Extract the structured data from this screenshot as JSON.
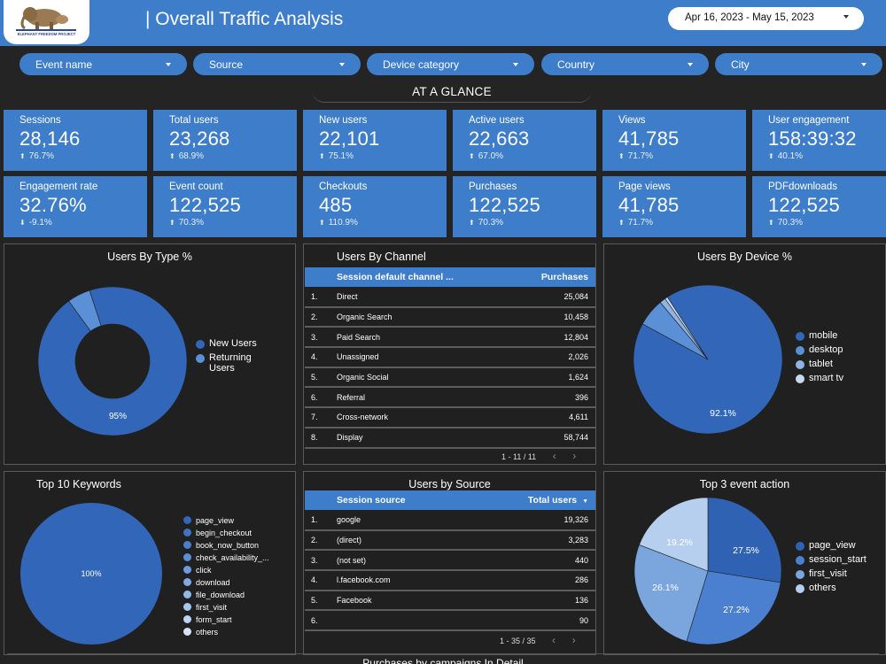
{
  "header": {
    "logo_text": "ELEPHANT FREEDOM PROJECT",
    "title": "| Overall Traffic Analysis",
    "date_range": "Apr 16, 2023 - May 15, 2023"
  },
  "filters": [
    "Event name",
    "Source",
    "Device category",
    "Country",
    "City"
  ],
  "section_title": "AT A GLANCE",
  "kpis": [
    {
      "label": "Sessions",
      "value": "28,146",
      "delta": "76.7%",
      "dir": "up"
    },
    {
      "label": "Total users",
      "value": "23,268",
      "delta": "68.9%",
      "dir": "up"
    },
    {
      "label": "New users",
      "value": "22,101",
      "delta": "75.1%",
      "dir": "up"
    },
    {
      "label": "Active users",
      "value": "22,663",
      "delta": "67.0%",
      "dir": "up"
    },
    {
      "label": "Views",
      "value": "41,785",
      "delta": "71.7%",
      "dir": "up"
    },
    {
      "label": "User engagement",
      "value": "158:39:32",
      "delta": "40.1%",
      "dir": "up"
    },
    {
      "label": "Engagement rate",
      "value": "32.76%",
      "delta": "-9.1%",
      "dir": "down"
    },
    {
      "label": "Event count",
      "value": "122,525",
      "delta": "70.3%",
      "dir": "up"
    },
    {
      "label": "Checkouts",
      "value": "485",
      "delta": "110.9%",
      "dir": "up"
    },
    {
      "label": "Purchases",
      "value": "122,525",
      "delta": "70.3%",
      "dir": "up"
    },
    {
      "label": "Page views",
      "value": "41,785",
      "delta": "71.7%",
      "dir": "up"
    },
    {
      "label": "PDFdownloads",
      "value": "122,525",
      "delta": "70.3%",
      "dir": "up"
    }
  ],
  "users_by_type": {
    "title": "Users By Type %",
    "label": "95%",
    "legend": [
      {
        "name": "New Users",
        "color": "#3266b8"
      },
      {
        "name": "Returning Users",
        "color": "#5b8fd6"
      }
    ]
  },
  "users_by_channel": {
    "title": "Users By Channel",
    "columns": [
      "Session default channel ...",
      "Purchases"
    ],
    "rows": [
      {
        "n": "1.",
        "name": "Direct",
        "val": "25,084"
      },
      {
        "n": "2.",
        "name": "Organic Search",
        "val": "10,458"
      },
      {
        "n": "3.",
        "name": "Paid Search",
        "val": "12,804"
      },
      {
        "n": "4.",
        "name": "Unassigned",
        "val": "2,026"
      },
      {
        "n": "5.",
        "name": "Organic Social",
        "val": "1,624"
      },
      {
        "n": "6.",
        "name": "Referral",
        "val": "396"
      },
      {
        "n": "7.",
        "name": "Cross-network",
        "val": "4,611"
      },
      {
        "n": "8.",
        "name": "Display",
        "val": "58,744"
      }
    ],
    "pager": "1 - 11 / 11"
  },
  "users_by_device": {
    "title": "Users By Device %",
    "label": "92.1%",
    "legend": [
      {
        "name": "mobile",
        "color": "#3266b8"
      },
      {
        "name": "desktop",
        "color": "#5b8fd6"
      },
      {
        "name": "tablet",
        "color": "#8fb3e3"
      },
      {
        "name": "smart tv",
        "color": "#c7d8f0"
      }
    ]
  },
  "top_keywords": {
    "title": "Top 10 Keywords",
    "label": "100%",
    "legend": [
      {
        "name": "page_view",
        "color": "#3266b8"
      },
      {
        "name": "begin_checkout",
        "color": "#3e73c2"
      },
      {
        "name": "book_now_button",
        "color": "#4a7fca"
      },
      {
        "name": "check_availability_...",
        "color": "#5b8fd6"
      },
      {
        "name": "click",
        "color": "#6d9cdc"
      },
      {
        "name": "download",
        "color": "#80aae2"
      },
      {
        "name": "file_download",
        "color": "#93b8e8"
      },
      {
        "name": "first_visit",
        "color": "#a7c6ed"
      },
      {
        "name": "form_start",
        "color": "#bcd4f2"
      },
      {
        "name": "others",
        "color": "#d4e3f6"
      }
    ]
  },
  "users_by_source": {
    "title": "Users by Source",
    "columns": [
      "Session source",
      "Total users"
    ],
    "rows": [
      {
        "n": "1.",
        "name": "google",
        "val": "19,326"
      },
      {
        "n": "2.",
        "name": "(direct)",
        "val": "3,283"
      },
      {
        "n": "3.",
        "name": "(not set)",
        "val": "440"
      },
      {
        "n": "4.",
        "name": "l.facebook.com",
        "val": "286"
      },
      {
        "n": "5.",
        "name": "Facebook",
        "val": "136"
      },
      {
        "n": "6.",
        "name": "",
        "val": "90"
      }
    ],
    "pager": "1 - 35 / 35"
  },
  "top_event_action": {
    "title": "Top 3 event action",
    "labels": [
      "27.5%",
      "27.2%",
      "26.1%",
      "19.2%"
    ],
    "legend": [
      {
        "name": "page_view",
        "color": "#2f62b3"
      },
      {
        "name": "session_start",
        "color": "#4a80cf"
      },
      {
        "name": "first_visit",
        "color": "#7aa6dd"
      },
      {
        "name": "others",
        "color": "#b7cfee"
      }
    ]
  },
  "bottom_title": "Purchases by campaigns In Detail"
}
